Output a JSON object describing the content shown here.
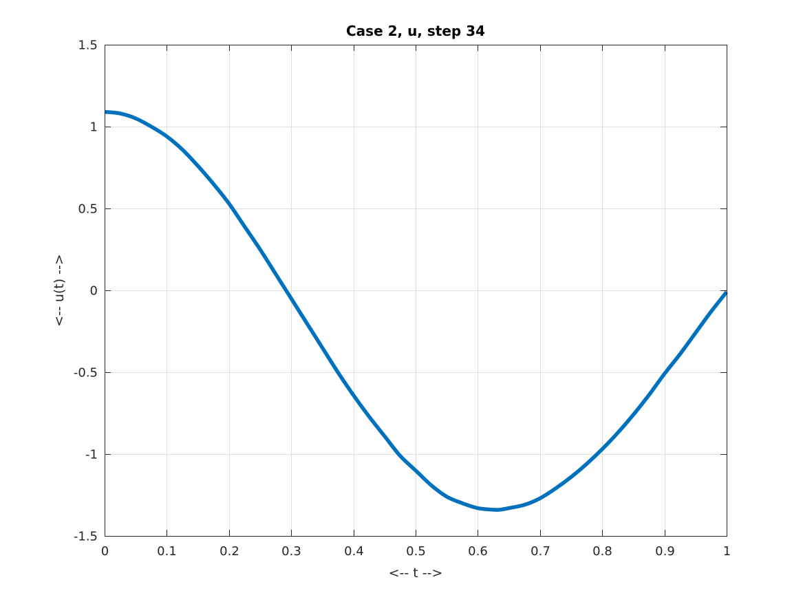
{
  "chart_data": {
    "type": "line",
    "title": "Case 2, u, step 34",
    "xlabel": "<-- t -->",
    "ylabel": "<-- u(t) -->",
    "xlim": [
      0,
      1
    ],
    "ylim": [
      -1.5,
      1.5
    ],
    "xticks": [
      0,
      0.1,
      0.2,
      0.3,
      0.4,
      0.5,
      0.6,
      0.7,
      0.8,
      0.9,
      1
    ],
    "xtick_labels": [
      "0",
      "0.1",
      "0.2",
      "0.3",
      "0.4",
      "0.5",
      "0.6",
      "0.7",
      "0.8",
      "0.9",
      "1"
    ],
    "yticks": [
      -1.5,
      -1,
      -0.5,
      0,
      0.5,
      1,
      1.5
    ],
    "ytick_labels": [
      "-1.5",
      "-1",
      "-0.5",
      "0",
      "0.5",
      "1",
      "1.5"
    ],
    "grid": true,
    "series": [
      {
        "color": "#0072bd",
        "x": [
          0,
          0.025,
          0.05,
          0.075,
          0.1,
          0.125,
          0.15,
          0.175,
          0.2,
          0.225,
          0.25,
          0.275,
          0.3,
          0.325,
          0.35,
          0.375,
          0.4,
          0.425,
          0.45,
          0.475,
          0.5,
          0.525,
          0.55,
          0.575,
          0.6,
          0.625,
          0.635,
          0.65,
          0.675,
          0.7,
          0.725,
          0.75,
          0.775,
          0.8,
          0.825,
          0.85,
          0.875,
          0.9,
          0.925,
          0.95,
          0.975,
          1
        ],
        "y": [
          1.09,
          1.08,
          1.05,
          1.0,
          0.94,
          0.86,
          0.76,
          0.65,
          0.53,
          0.39,
          0.25,
          0.1,
          -0.05,
          -0.2,
          -0.35,
          -0.5,
          -0.64,
          -0.77,
          -0.89,
          -1.01,
          -1.1,
          -1.19,
          -1.26,
          -1.3,
          -1.33,
          -1.34,
          -1.34,
          -1.33,
          -1.31,
          -1.27,
          -1.21,
          -1.14,
          -1.06,
          -0.97,
          -0.87,
          -0.76,
          -0.64,
          -0.51,
          -0.39,
          -0.26,
          -0.13,
          -0.01
        ]
      }
    ]
  }
}
